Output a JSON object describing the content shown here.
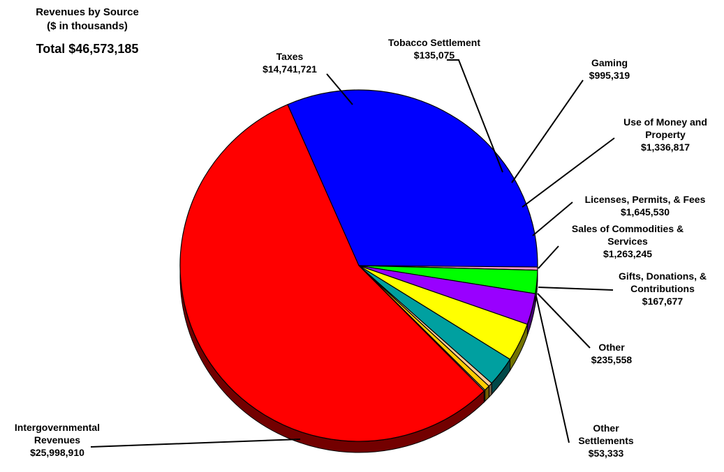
{
  "title": {
    "line1": "Revenues by Source",
    "line2": "($ in thousands)",
    "total": "Total $46,573,185"
  },
  "chart_data": {
    "type": "pie",
    "title": "Revenues by Source ($ in thousands)",
    "total": 46573185,
    "slices": [
      {
        "name": "Taxes",
        "label_lines": [
          "Taxes"
        ],
        "value_text": "$14,741,721",
        "value": 14741721,
        "color": "#0000FF"
      },
      {
        "name": "Tobacco Settlement",
        "label_lines": [
          "Tobacco Settlement"
        ],
        "value_text": "$135,075",
        "value": 135075,
        "color": "#FF99CC"
      },
      {
        "name": "Gaming",
        "label_lines": [
          "Gaming"
        ],
        "value_text": "$995,319",
        "value": 995319,
        "color": "#00FF00"
      },
      {
        "name": "Use of Money and Property",
        "label_lines": [
          "Use of Money and",
          "Property"
        ],
        "value_text": "$1,336,817",
        "value": 1336817,
        "color": "#9900FF"
      },
      {
        "name": "Licenses, Permits, & Fees",
        "label_lines": [
          "Licenses, Permits, & Fees"
        ],
        "value_text": "$1,645,530",
        "value": 1645530,
        "color": "#FFFF00"
      },
      {
        "name": "Sales of Commodities & Services",
        "label_lines": [
          "Sales of Commodities &",
          "Services"
        ],
        "value_text": "$1,263,245",
        "value": 1263245,
        "color": "#00A0A0"
      },
      {
        "name": "Gifts, Donations, & Contributions",
        "label_lines": [
          "Gifts, Donations, &",
          "Contributions"
        ],
        "value_text": "$167,677",
        "value": 167677,
        "color": "#FFCC99"
      },
      {
        "name": "Other",
        "label_lines": [
          "Other"
        ],
        "value_text": "$235,558",
        "value": 235558,
        "color": "#FFCC00"
      },
      {
        "name": "Other Settlements",
        "label_lines": [
          "Other",
          "Settlements"
        ],
        "value_text": "$53,333",
        "value": 53333,
        "color": "#C0C0C0"
      },
      {
        "name": "Intergovernmental Revenues",
        "label_lines": [
          "Intergovernmental",
          "Revenues"
        ],
        "value_text": "$25,998,910",
        "value": 25998910,
        "color": "#FF0000"
      }
    ]
  }
}
